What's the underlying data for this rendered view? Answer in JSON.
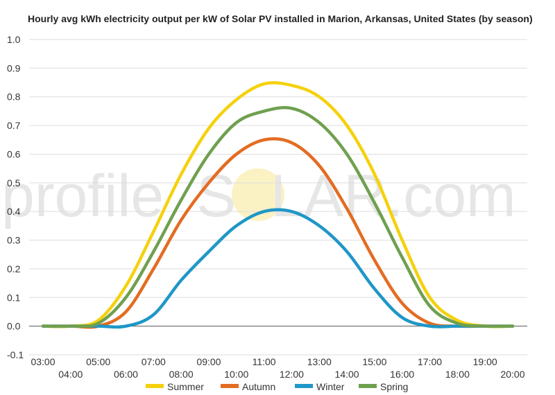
{
  "watermark": {
    "left": "profile",
    "middle": "S",
    "right": "LAR.com"
  },
  "chart_data": {
    "type": "line",
    "title": "Hourly avg kWh electricity output per kW of Solar PV installed in Marion, Arkansas, United States (by season)",
    "xlabel": "",
    "ylabel": "",
    "ylim": [
      -0.1,
      1.0
    ],
    "yticks": [
      "-0.1",
      "0.0",
      "0.1",
      "0.2",
      "0.3",
      "0.4",
      "0.5",
      "0.6",
      "0.7",
      "0.8",
      "0.9",
      "1.0"
    ],
    "x": [
      "03:00",
      "04:00",
      "05:00",
      "06:00",
      "07:00",
      "08:00",
      "09:00",
      "10:00",
      "11:00",
      "12:00",
      "13:00",
      "14:00",
      "15:00",
      "16:00",
      "17:00",
      "18:00",
      "19:00",
      "20:00"
    ],
    "grid": true,
    "legend_position": "bottom",
    "series": [
      {
        "name": "Summer",
        "color": "#f5d10d",
        "values": [
          0.0,
          0.0,
          0.02,
          0.14,
          0.33,
          0.53,
          0.69,
          0.79,
          0.845,
          0.84,
          0.8,
          0.7,
          0.53,
          0.3,
          0.1,
          0.02,
          0.0,
          0.0
        ]
      },
      {
        "name": "Autumn",
        "color": "#e36c22",
        "values": [
          0.0,
          0.0,
          0.0,
          0.05,
          0.2,
          0.37,
          0.5,
          0.6,
          0.65,
          0.64,
          0.56,
          0.41,
          0.23,
          0.08,
          0.01,
          0.0,
          0.0,
          0.0
        ]
      },
      {
        "name": "Winter",
        "color": "#1f97c7",
        "values": [
          0.0,
          0.0,
          0.0,
          0.0,
          0.04,
          0.16,
          0.26,
          0.35,
          0.4,
          0.4,
          0.35,
          0.26,
          0.13,
          0.03,
          0.0,
          0.0,
          0.0,
          0.0
        ]
      },
      {
        "name": "Spring",
        "color": "#6fa04f",
        "values": [
          0.0,
          0.0,
          0.01,
          0.1,
          0.26,
          0.44,
          0.6,
          0.71,
          0.75,
          0.76,
          0.71,
          0.6,
          0.43,
          0.24,
          0.07,
          0.01,
          0.0,
          0.0
        ]
      }
    ]
  }
}
